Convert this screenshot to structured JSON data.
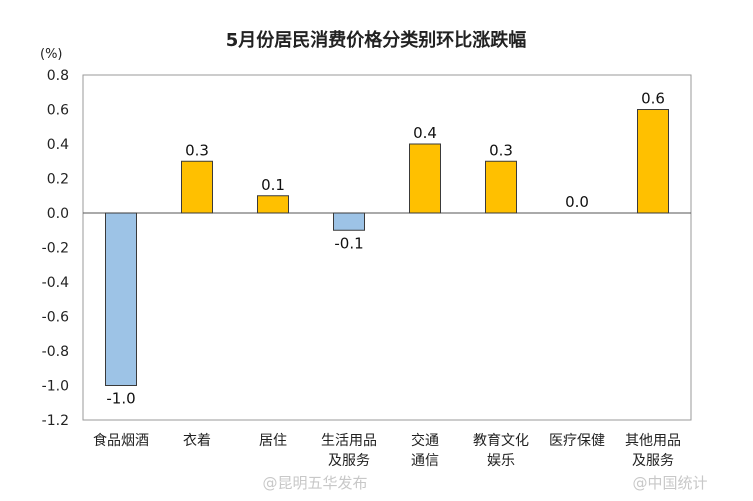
{
  "chart_data": {
    "type": "bar",
    "title": "5月份居民消费价格分类别环比涨跌幅",
    "unit_label": "(%)",
    "ylim": [
      -1.2,
      0.8
    ],
    "yticks": [
      0.8,
      0.6,
      0.4,
      0.2,
      0.0,
      -0.2,
      -0.4,
      -0.6,
      -0.8,
      -1.0,
      -1.2
    ],
    "ytick_labels": [
      "0.8",
      "0.6",
      "0.4",
      "0.2",
      "0.0",
      "-0.2",
      "-0.4",
      "-0.6",
      "-0.8",
      "-1.0",
      "-1.2"
    ],
    "grid": false,
    "categories": [
      [
        "食品烟酒"
      ],
      [
        "衣着"
      ],
      [
        "居住"
      ],
      [
        "生活用品",
        "及服务"
      ],
      [
        "交通",
        "通信"
      ],
      [
        "教育文化",
        "娱乐"
      ],
      [
        "医疗保健"
      ],
      [
        "其他用品",
        "及服务"
      ]
    ],
    "values": [
      -1.0,
      0.3,
      0.1,
      -0.1,
      0.4,
      0.3,
      0.0,
      0.6
    ],
    "value_labels": [
      "-1.0",
      "0.3",
      "0.1",
      "-0.1",
      "0.4",
      "0.3",
      "0.0",
      "0.6"
    ],
    "colors": {
      "positive": "#FFC000",
      "negative": "#9DC3E6",
      "positive_stroke": "#3a3a3a",
      "negative_stroke": "#3a3a3a"
    }
  },
  "watermarks": [
    "@昆明五华发布",
    "@中国统计"
  ]
}
